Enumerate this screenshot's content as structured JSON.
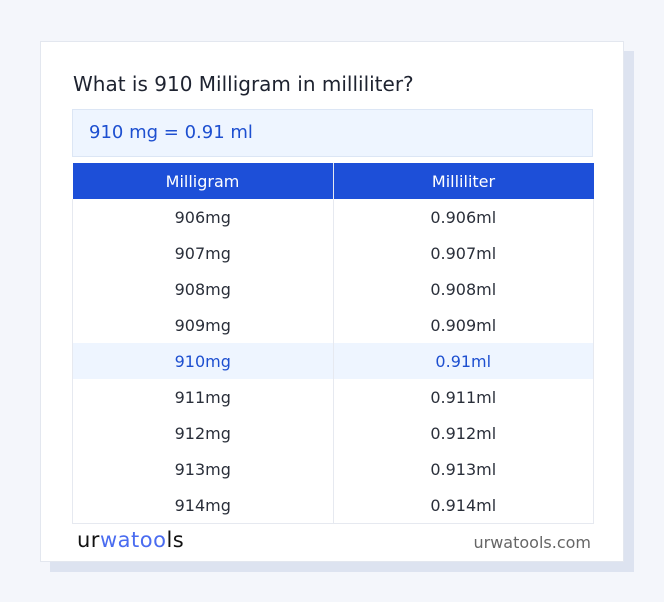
{
  "title": "What is 910 Milligram in milliliter?",
  "result": "910 mg = 0.91 ml",
  "table": {
    "headers": [
      "Milligram",
      "Milliliter"
    ],
    "rows": [
      [
        "906mg",
        "0.906ml"
      ],
      [
        "907mg",
        "0.907ml"
      ],
      [
        "908mg",
        "0.908ml"
      ],
      [
        "909mg",
        "0.909ml"
      ],
      [
        "910mg",
        "0.91ml"
      ],
      [
        "911mg",
        "0.911ml"
      ],
      [
        "912mg",
        "0.912ml"
      ],
      [
        "913mg",
        "0.913ml"
      ],
      [
        "914mg",
        "0.914ml"
      ]
    ],
    "highlighted_row": 4
  },
  "footer": {
    "logo": {
      "part1": "ur",
      "part2": "wa",
      "part3": "too",
      "part4": "ls"
    },
    "site": "urwatools.com"
  },
  "colors": {
    "accent": "#1d4fd8",
    "highlight_bg": "#eef5ff"
  }
}
